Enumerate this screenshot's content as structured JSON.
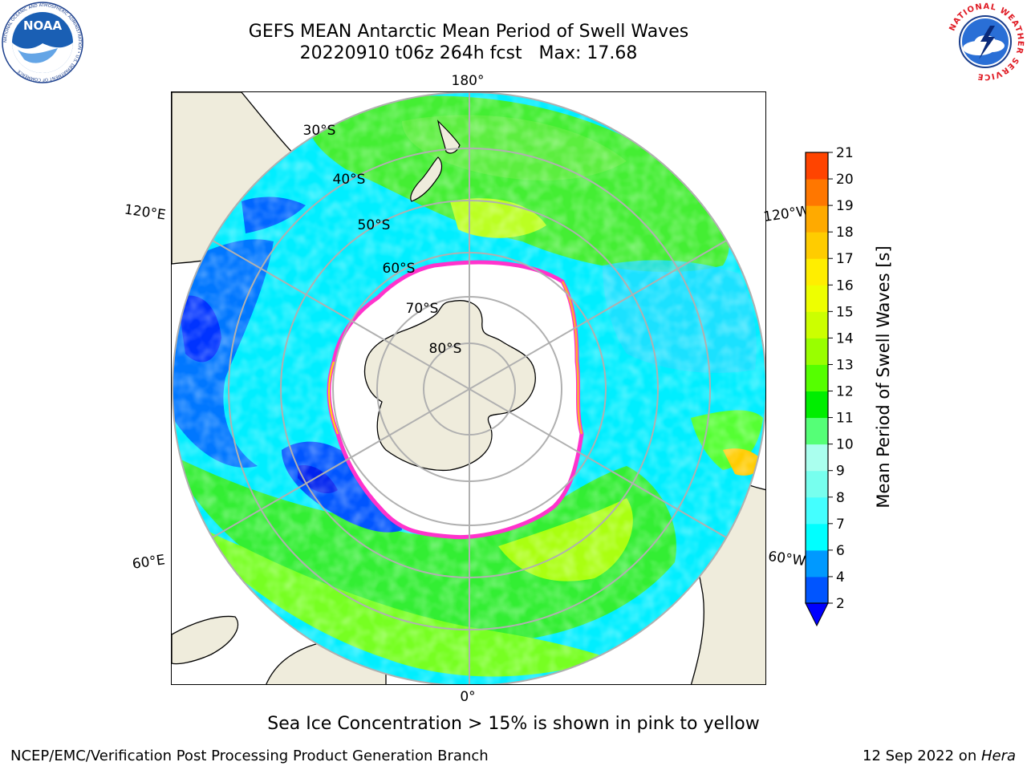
{
  "header": {
    "title_line1": "GEFS MEAN Antarctic Mean Period of Swell Waves",
    "title_line2": "20220910 t06z 264h fcst   Max: 17.68"
  },
  "logos": {
    "left": {
      "name": "NOAA",
      "text": "NOAA",
      "ring_text": "NATIONAL OCEANIC AND ATMOSPHERIC ADMINISTRATION • U.S. DEPARTMENT OF COMMERCE"
    },
    "right": {
      "name": "National Weather Service",
      "ring_text": "NATIONAL WEATHER SERVICE"
    }
  },
  "map": {
    "projection": "south-polar-stereographic",
    "longitude_labels": {
      "top": "180°",
      "bottom": "0°",
      "upper_left": "120°E",
      "upper_right": "120°W",
      "lower_left": "60°E",
      "lower_right": "60°W"
    },
    "latitude_labels": [
      "30°S",
      "40°S",
      "50°S",
      "60°S",
      "70°S",
      "80°S"
    ],
    "colors": {
      "land": "#efecdc",
      "ice_free_background": "#ffffff",
      "grid": "#b0b0b0",
      "coast": "#000000",
      "sea_ice_edge": [
        "#ff33cc",
        "#ffaa33",
        "#ffdd00"
      ]
    }
  },
  "colorbar": {
    "label": "Mean Period of Swell Waves [s]",
    "ticks": [
      "2",
      "4",
      "6",
      "7",
      "8",
      "9",
      "10",
      "11",
      "12",
      "13",
      "14",
      "15",
      "16",
      "17",
      "18",
      "19",
      "20",
      "21"
    ],
    "levels": [
      2,
      4,
      6,
      7,
      8,
      9,
      10,
      11,
      12,
      13,
      14,
      15,
      16,
      17,
      18,
      19,
      20,
      21
    ],
    "colors": [
      "#0055ff",
      "#0099ff",
      "#00ffff",
      "#44ffff",
      "#77ffee",
      "#aaffee",
      "#55ff77",
      "#00ee00",
      "#55ff00",
      "#99ff00",
      "#ccff00",
      "#eeff00",
      "#ffee00",
      "#ffcc00",
      "#ffaa00",
      "#ff7700",
      "#ff4400",
      "#ff0000"
    ],
    "under_color": "#0000ff",
    "extend": "min"
  },
  "footer": {
    "note": "Sea Ice Concentration > 15% is shown in pink to yellow",
    "credit_left": "NCEP/EMC/Verification Post Processing Product Generation Branch",
    "date": "12 Sep 2022 on ",
    "host": "Hera"
  }
}
